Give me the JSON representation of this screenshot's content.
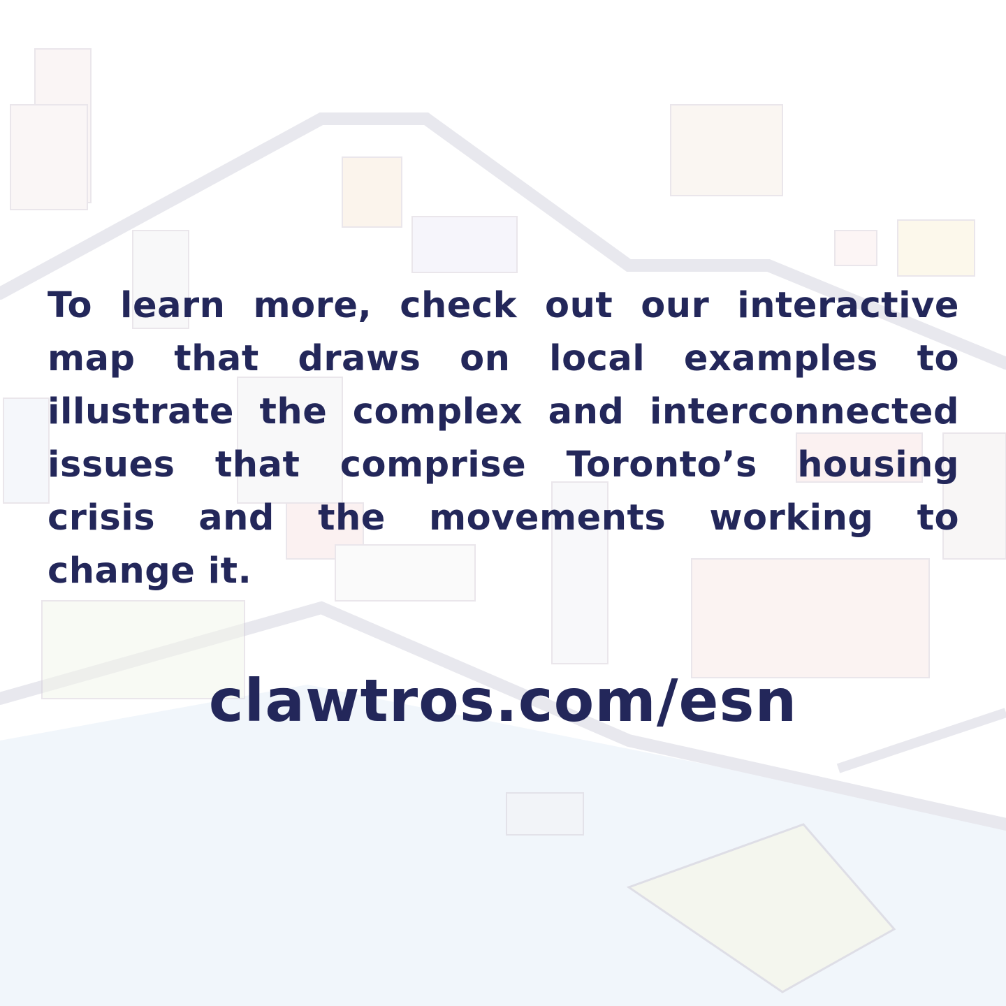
{
  "body_text": "To learn more, check out our interactive map that draws on local examples to illustrate the complex and interconnected issues that comprise Toronto’s housing crisis and the movements working to change it.",
  "url": "clawtros.com/esn",
  "colors": {
    "text": "#23275a",
    "water": "#eef4fa",
    "road": "#e8e8ee"
  }
}
